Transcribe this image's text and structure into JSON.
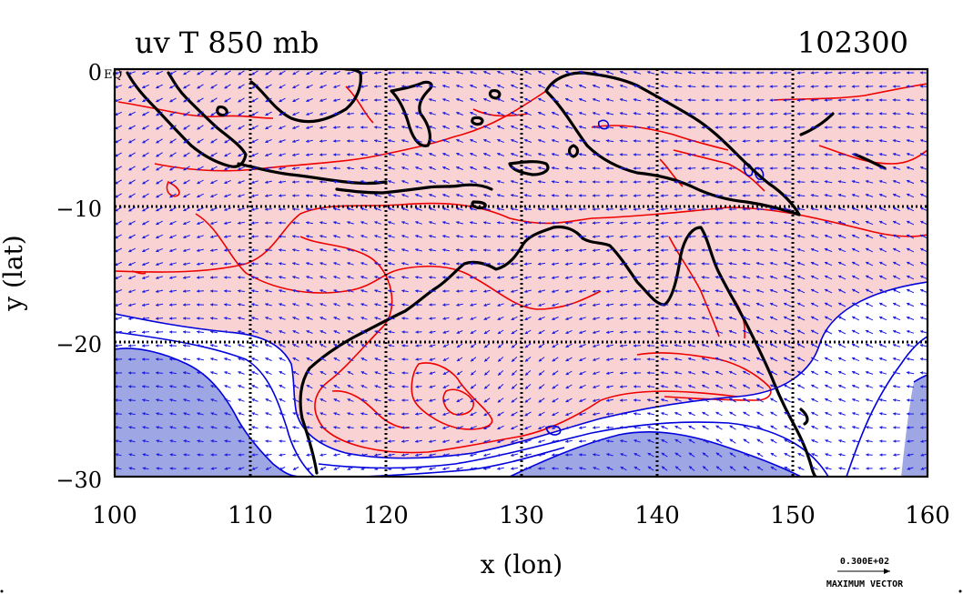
{
  "chart_data": {
    "type": "contour+vector map",
    "title_left": "uv T 850 mb",
    "title_right": "102300",
    "xlabel": "x (lon)",
    "ylabel": "y (lat)",
    "xlim": [
      100,
      160
    ],
    "ylim": [
      -30,
      0
    ],
    "x_ticks": [
      100,
      110,
      120,
      130,
      140,
      150,
      160
    ],
    "x_tick_labels": [
      "100",
      "110",
      "120",
      "130",
      "140",
      "150",
      "160"
    ],
    "y_ticks": [
      0,
      -10,
      -20,
      -30
    ],
    "y_tick_labels": [
      "0",
      "−10",
      "−20",
      "−30"
    ],
    "equator_label": "EQ",
    "grid": true,
    "vector_key": {
      "value": "0.300E+02",
      "label": "MAXIMUM VECTOR"
    },
    "colors": {
      "warm_fill": "#f9d3d3",
      "cold_fill": "#9ea6e4",
      "warm_contour": "#ee0000",
      "cold_contour": "#0000dd",
      "vectors": "#1a1ae0",
      "coast": "#000000"
    },
    "fields": {
      "wind_vectors": "850 mb horizontal wind (u,v)",
      "temperature_contours": "850 mb temperature"
    }
  }
}
